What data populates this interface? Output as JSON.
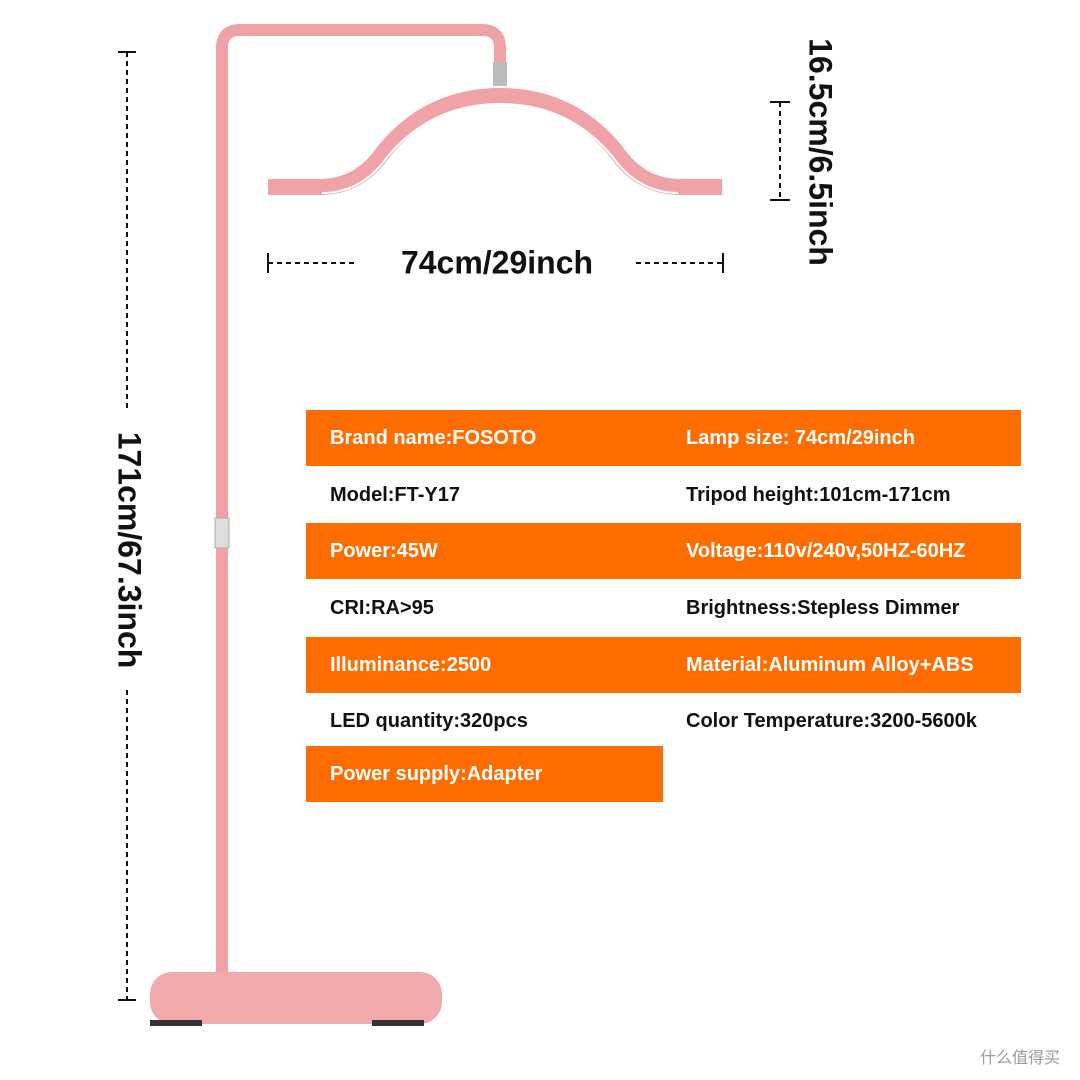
{
  "dimensions": {
    "height": "171cm/67.3inch",
    "width": "74cm/29inch",
    "depth": "16.5cm/6.5inch"
  },
  "specs": {
    "rows": [
      [
        "Brand name:FOSOTO",
        "Lamp size: 74cm/29inch"
      ],
      [
        "Model:FT-Y17",
        "Tripod height:101cm-171cm"
      ],
      [
        "Power:45W",
        "Voltage:110v/240v,50HZ-60HZ"
      ],
      [
        "CRI:RA>95",
        "Brightness:Stepless Dimmer"
      ],
      [
        "Illuminance:2500",
        "Material:Aluminum Alloy+ABS"
      ],
      [
        "LED quantity:320pcs",
        "Color Temperature:3200-5600k"
      ],
      [
        "Power supply:Adapter"
      ]
    ]
  },
  "watermark": "什么值得买"
}
